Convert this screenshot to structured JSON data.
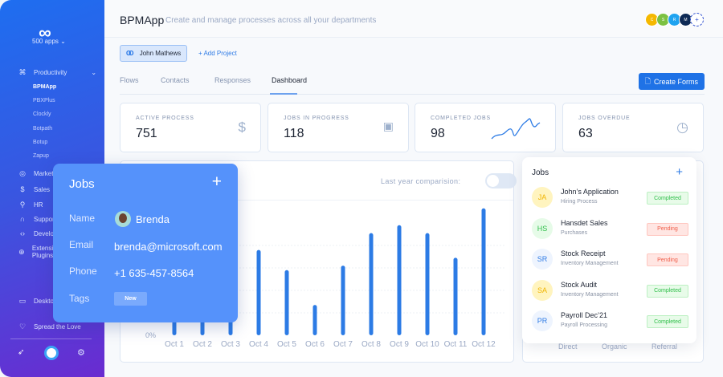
{
  "sidebar": {
    "logo": "∞",
    "apps_label": "500 apps",
    "sections": [
      {
        "label": "Productivity",
        "icon": "command-icon"
      },
      {
        "label": "Marketing",
        "icon": "target-icon"
      },
      {
        "label": "Sales",
        "icon": "dollar-icon"
      },
      {
        "label": "HR",
        "icon": "user-icon"
      },
      {
        "label": "Support",
        "icon": "headphones-icon"
      },
      {
        "label": "Developer",
        "icon": "code-icon"
      },
      {
        "label": "Extensions & Plugins",
        "icon": "globe-icon"
      },
      {
        "label": "Desktop",
        "icon": "monitor-icon"
      },
      {
        "label": "Spread the Love",
        "icon": "heart-icon"
      }
    ],
    "productivity_apps": [
      "BPMApp",
      "PBXPlus",
      "Clockly",
      "Botpath",
      "Botup",
      "Zapup"
    ]
  },
  "header": {
    "title": "BPMApp",
    "subtitle": "Create and manage processes across all your departments",
    "avatars": [
      {
        "letter": "C",
        "color": "#f5b800"
      },
      {
        "letter": "S",
        "color": "#7cc142"
      },
      {
        "letter": "R",
        "color": "#1fa3f0"
      },
      {
        "letter": "M",
        "color": "#0e2a55"
      }
    ]
  },
  "project": {
    "name": "John Mathews",
    "add_label": "+ Add Project"
  },
  "tabs": [
    {
      "label": "Flows"
    },
    {
      "label": "Contacts"
    },
    {
      "label": "Responses"
    },
    {
      "label": "Dashboard",
      "active": true
    }
  ],
  "create_button": "Create Forms",
  "stats": [
    {
      "label": "ACTIVE PROCESS",
      "value": "751",
      "icon": "dollar-icon"
    },
    {
      "label": "JOBS IN PROGRESS",
      "value": "118",
      "icon": "briefcase-icon"
    },
    {
      "label": "COMPLETED JOBS",
      "value": "98",
      "icon": "sparkline"
    },
    {
      "label": "JOBS OVERDUE",
      "value": "63",
      "icon": "clock-icon"
    }
  ],
  "comparison_label": "Last year comparision:",
  "comparison_enabled": false,
  "chart_data": {
    "type": "bar",
    "categories": [
      "Oct 1",
      "Oct 2",
      "Oct 3",
      "Oct 4",
      "Oct 5",
      "Oct 6",
      "Oct 7",
      "Oct 8",
      "Oct 9",
      "Oct 10",
      "Oct 11",
      "Oct 12"
    ],
    "values": [
      40,
      50,
      45,
      76,
      58,
      27,
      62,
      91,
      98,
      91,
      69,
      113
    ],
    "y_tick_visible": "0%",
    "color": "#2c7be5",
    "grid": true
  },
  "source_labels": [
    "Direct",
    "Organic",
    "Referral"
  ],
  "jobs_panel": {
    "title": "Jobs",
    "items": [
      {
        "initials": "JA",
        "name": "John’s Application",
        "sub": "Hiring Process",
        "status": "Completed",
        "bg": "#fff4bf",
        "fg": "#f0b400"
      },
      {
        "initials": "HS",
        "name": "Hansdet Sales",
        "sub": "Purchases",
        "status": "Pending",
        "bg": "#e6fbe8",
        "fg": "#2fbf4a"
      },
      {
        "initials": "SR",
        "name": "Stock Receipt",
        "sub": "Inventory Management",
        "status": "Pending",
        "bg": "#eef4fe",
        "fg": "#2f7be5"
      },
      {
        "initials": "SA",
        "name": "Stock Audit",
        "sub": "Inventory Management",
        "status": "Completed",
        "bg": "#fff4bf",
        "fg": "#f0b400"
      },
      {
        "initials": "PR",
        "name": "Payroll Dec’21",
        "sub": "Payroll Processing",
        "status": "Completed",
        "bg": "#eef4fe",
        "fg": "#2f7be5"
      }
    ]
  },
  "popup": {
    "title": "Jobs",
    "name_label": "Name",
    "name": "Brenda",
    "email_label": "Email",
    "email": "brenda@microsoft.com",
    "phone_label": "Phone",
    "phone": "+1 635-457-8564",
    "tags_label": "Tags",
    "tag": "New"
  }
}
